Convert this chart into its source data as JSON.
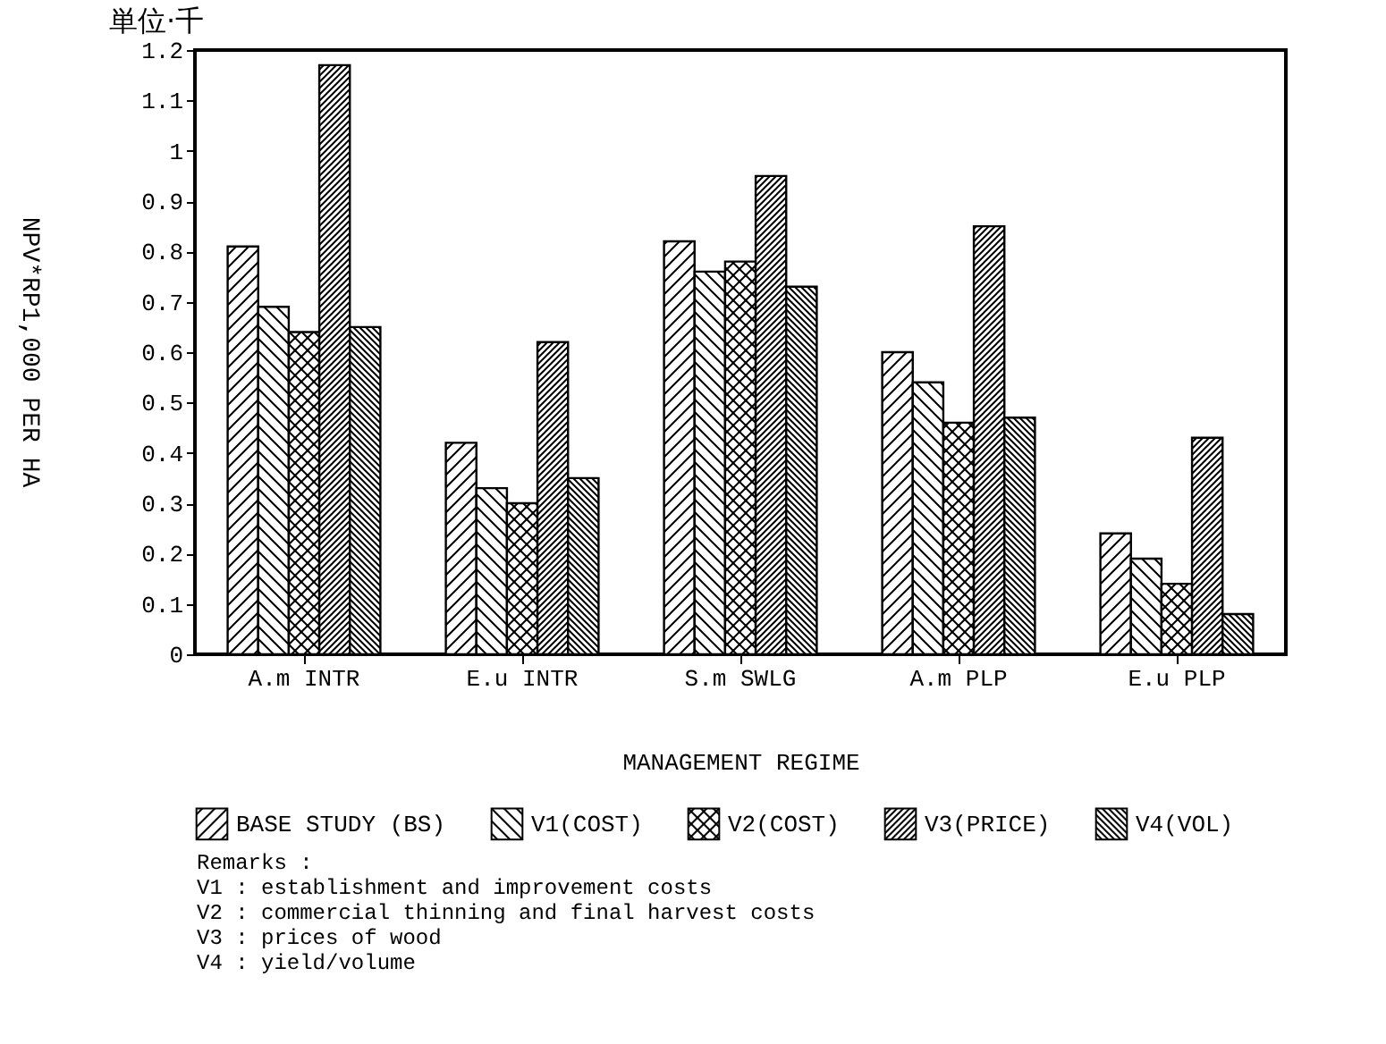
{
  "chart_data": {
    "type": "bar",
    "title": "単位·千",
    "xlabel": "MANAGEMENT REGIME",
    "ylabel": "NPV*RP1,000 PER HA",
    "categories": [
      "A.m INTR",
      "E.u INTR",
      "S.m SWLG",
      "A.m PLP",
      "E.u PLP"
    ],
    "series": [
      {
        "name": "BASE STUDY (BS)",
        "color": "#000000",
        "values": [
          0.81,
          0.42,
          0.82,
          0.6,
          0.24
        ]
      },
      {
        "name": "V1(COST)",
        "color": "#000000",
        "values": [
          0.69,
          0.33,
          0.76,
          0.54,
          0.19
        ]
      },
      {
        "name": "V2(COST)",
        "color": "#000000",
        "values": [
          0.64,
          0.3,
          0.78,
          0.46,
          0.14
        ]
      },
      {
        "name": "V3(PRICE)",
        "color": "#000000",
        "values": [
          1.17,
          0.62,
          0.95,
          0.85,
          0.43
        ]
      },
      {
        "name": "V4(VOL)",
        "color": "#000000",
        "values": [
          0.65,
          0.35,
          0.73,
          0.47,
          0.08
        ]
      }
    ],
    "ylim": [
      0,
      1.2
    ],
    "yticks": [
      0,
      0.1,
      0.2,
      0.3,
      0.4,
      0.5,
      0.6,
      0.7,
      0.8,
      0.9,
      1,
      1.1,
      1.2
    ],
    "grid": false,
    "legend": "bottom",
    "annotations": [
      "Remarks :",
      "V1 : establishment and improvement costs",
      "V2 : commercial thinning and final harvest costs",
      "V3 : prices of wood",
      "V4 : yield/volume"
    ]
  }
}
